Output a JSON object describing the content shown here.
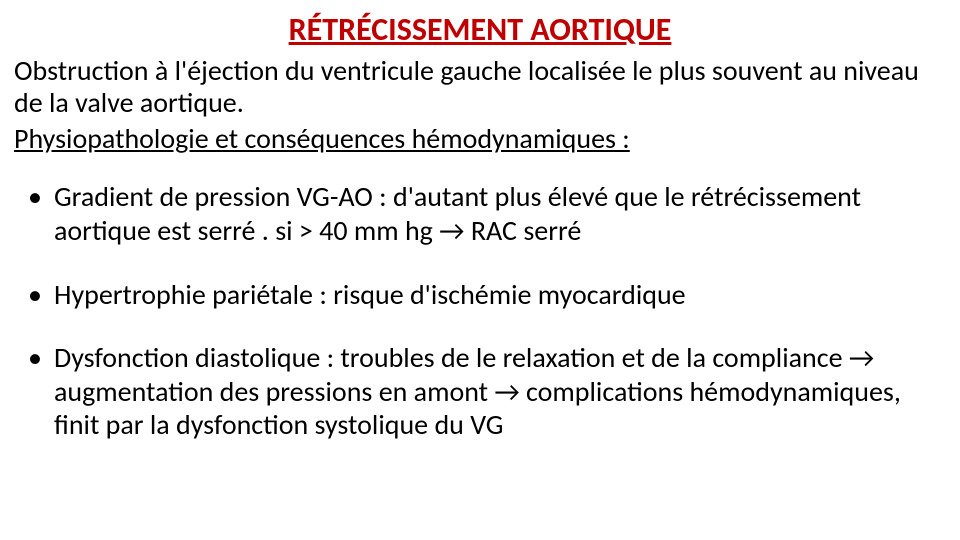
{
  "title": "RÉTRÉCISSEMENT AORTIQUE",
  "intro": "Obstruction à l'éjection du ventricule gauche localisée le plus souvent au niveau de la valve aortique.",
  "subheading": "Physiopathologie et conséquences hémodynamiques :",
  "bullets": [
    "Gradient de pression VG-AO : d'autant plus élevé que le rétrécissement aortique est serré . si > 40 mm hg → RAC serré",
    "Hypertrophie pariétale : risque d'ischémie myocardique",
    "Dysfonction diastolique : troubles de le relaxation et de la compliance → augmentation des pressions en amont → complications hémodynamiques, finit par la dysfonction systolique du VG"
  ],
  "colors": {
    "title": "#c00000",
    "text": "#000000",
    "background": "#ffffff"
  },
  "typography": {
    "title_fontsize": 32,
    "body_fontsize": 28,
    "font_family": "Calibri"
  }
}
